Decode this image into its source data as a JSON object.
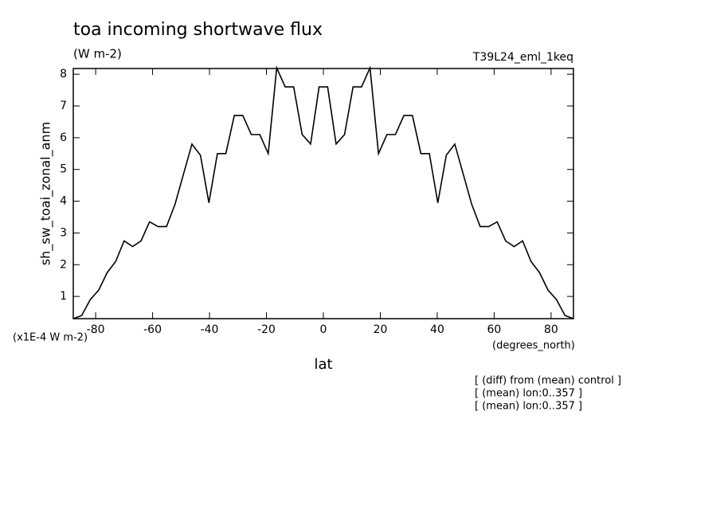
{
  "chart_data": {
    "type": "line",
    "title": "toa incoming shortwave flux",
    "units": "(W m-2)",
    "run_label": "T39L24_eml_1keq",
    "y_label": "sh_sw_toai_zonal_anm",
    "scale_label": "(x1E-4 W m-2)",
    "x_units": "(degrees_north)",
    "x_label": "lat",
    "notes": [
      "[ (diff) from (mean) control ]",
      "[ (mean) lon:0..357 ]",
      "[ (mean) lon:0..357 ]"
    ],
    "x": [
      -87.86,
      -84.88,
      -81.9,
      -78.93,
      -75.95,
      -72.97,
      -69.99,
      -67.01,
      -64.04,
      -61.06,
      -58.08,
      -55.1,
      -52.12,
      -49.15,
      -46.17,
      -43.19,
      -40.21,
      -37.23,
      -34.26,
      -31.28,
      -28.3,
      -25.32,
      -22.34,
      -19.37,
      -16.39,
      -13.41,
      -10.43,
      -7.45,
      -4.48,
      -1.5,
      1.5,
      4.48,
      7.45,
      10.43,
      13.41,
      16.39,
      19.37,
      22.34,
      25.32,
      28.3,
      31.28,
      34.26,
      37.23,
      40.21,
      43.19,
      46.17,
      49.15,
      52.12,
      55.1,
      58.08,
      61.06,
      64.04,
      67.01,
      69.99,
      72.97,
      75.95,
      78.93,
      81.9,
      84.88,
      87.86
    ],
    "series": [
      {
        "color": "#000000",
        "values": [
          0.3,
          0.4,
          0.9,
          1.2,
          1.75,
          2.1,
          2.75,
          2.57,
          2.75,
          3.35,
          3.2,
          3.2,
          3.9,
          4.85,
          5.8,
          5.45,
          3.95,
          5.5,
          5.5,
          6.7,
          6.7,
          6.1,
          6.1,
          5.5,
          8.2,
          7.6,
          7.6,
          6.1,
          5.8,
          7.6,
          7.6,
          5.8,
          6.1,
          7.6,
          7.6,
          8.2,
          5.5,
          6.1,
          6.1,
          6.7,
          6.7,
          5.5,
          5.5,
          3.95,
          5.45,
          5.8,
          4.85,
          3.9,
          3.2,
          3.2,
          3.35,
          2.75,
          2.57,
          2.75,
          2.1,
          1.75,
          1.2,
          0.9,
          0.4,
          0.3
        ]
      }
    ],
    "xlim": [
      -87.86,
      87.86
    ],
    "ylim": [
      0.3,
      8.18
    ],
    "xticks": [
      -80,
      -60,
      -40,
      -20,
      0,
      20,
      40,
      60,
      80
    ],
    "yticks": [
      1,
      2,
      3,
      4,
      5,
      6,
      7,
      8
    ]
  }
}
